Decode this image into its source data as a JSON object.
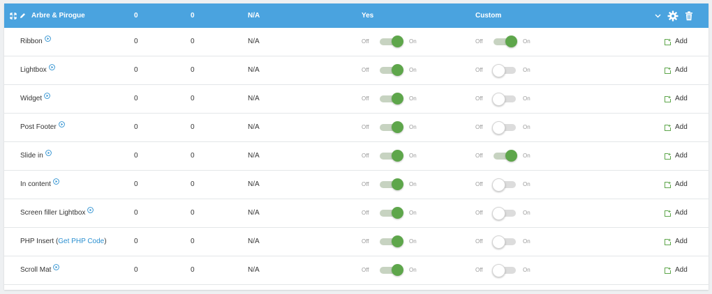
{
  "header": {
    "title": "Arbre & Pirogue",
    "col_v1": "0",
    "col_v2": "0",
    "col_na": "N/A",
    "col_yes": "Yes",
    "col_custom": "Custom",
    "expand_icon": "expand-icon",
    "edit_icon": "pencil-icon",
    "chevron_icon": "chevron-down-icon",
    "settings_icon": "gear-icon",
    "delete_icon": "trash-icon"
  },
  "labels": {
    "off": "Off",
    "on": "On",
    "add": "Add"
  },
  "colors": {
    "header": "#4aa3df",
    "toggle_on": "#5ea64b",
    "link": "#2a8fd0"
  },
  "rows": [
    {
      "name": "Ribbon",
      "v1": "0",
      "v2": "0",
      "na": "N/A",
      "yes_on": true,
      "custom_on": true
    },
    {
      "name": "Lightbox",
      "v1": "0",
      "v2": "0",
      "na": "N/A",
      "yes_on": true,
      "custom_on": false
    },
    {
      "name": "Widget",
      "v1": "0",
      "v2": "0",
      "na": "N/A",
      "yes_on": true,
      "custom_on": false
    },
    {
      "name": "Post Footer",
      "v1": "0",
      "v2": "0",
      "na": "N/A",
      "yes_on": true,
      "custom_on": false
    },
    {
      "name": "Slide in",
      "v1": "0",
      "v2": "0",
      "na": "N/A",
      "yes_on": true,
      "custom_on": true
    },
    {
      "name": "In content",
      "v1": "0",
      "v2": "0",
      "na": "N/A",
      "yes_on": true,
      "custom_on": false
    },
    {
      "name": "Screen filler Lightbox",
      "v1": "0",
      "v2": "0",
      "na": "N/A",
      "yes_on": true,
      "custom_on": false
    },
    {
      "name": "PHP Insert",
      "link_text": "Get PHP Code",
      "v1": "0",
      "v2": "0",
      "na": "N/A",
      "yes_on": true,
      "custom_on": false
    },
    {
      "name": "Scroll Mat",
      "v1": "0",
      "v2": "0",
      "na": "N/A",
      "yes_on": true,
      "custom_on": false
    }
  ]
}
